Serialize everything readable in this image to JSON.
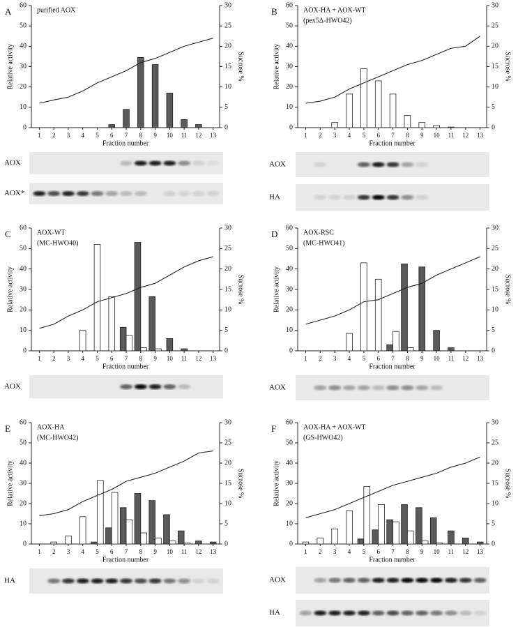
{
  "chart_data": [
    {
      "type": "bar",
      "panel": "A",
      "title": "purified AOX",
      "categories": [
        1,
        2,
        3,
        4,
        5,
        6,
        7,
        8,
        9,
        10,
        11,
        12,
        13
      ],
      "series": [
        {
          "color": "#5a5a5a",
          "values": [
            null,
            null,
            null,
            null,
            null,
            1.5,
            9,
            34.5,
            31,
            17,
            4,
            1.5,
            null
          ]
        },
        {
          "color": "#222222",
          "axis": "y2",
          "values": [
            6,
            6.8,
            7.5,
            9,
            11,
            12.5,
            14,
            16,
            17,
            18.5,
            20,
            21,
            22
          ]
        }
      ],
      "x_label": "Fraction number",
      "y_label": "Relative activity",
      "y2_label": "Sucrose %",
      "ylim": [
        0,
        60
      ],
      "yticks": [
        0,
        10,
        20,
        30,
        40,
        50,
        60
      ],
      "y2lim": [
        0,
        30
      ],
      "y2ticks": [
        0,
        5,
        10,
        15,
        20,
        25,
        30
      ],
      "blots": [
        "AOX",
        "AOX*"
      ]
    },
    {
      "type": "bar",
      "panel": "B",
      "title": "AOX-HA + AOX-WT",
      "subtitle": "(pex5Δ-HWO42)",
      "categories": [
        1,
        2,
        3,
        4,
        5,
        6,
        7,
        8,
        9,
        10,
        11,
        12,
        13
      ],
      "series": [
        {
          "color": "#ffffff",
          "values": [
            null,
            null,
            2.5,
            16.5,
            29,
            23,
            16.5,
            6,
            2.5,
            1,
            0.3,
            null,
            null
          ]
        },
        {
          "color": "#222222",
          "axis": "y2",
          "values": [
            6,
            6.5,
            7.5,
            9.5,
            11,
            12.5,
            14,
            15.5,
            16.5,
            18,
            19.5,
            20,
            22.5
          ]
        }
      ],
      "x_label": "Fraction number",
      "y_label": "Relative activity",
      "y2_label": "Sucrose %",
      "ylim": [
        0,
        60
      ],
      "yticks": [
        0,
        10,
        20,
        30,
        40,
        50,
        60
      ],
      "y2lim": [
        0,
        30
      ],
      "y2ticks": [
        0,
        5,
        10,
        15,
        20,
        25,
        30
      ],
      "blots": [
        "AOX",
        "HA"
      ]
    },
    {
      "type": "bar",
      "panel": "C",
      "title": "AOX-WT",
      "subtitle": "(MC-HWO40)",
      "categories": [
        1,
        2,
        3,
        4,
        5,
        6,
        7,
        8,
        9,
        10,
        11,
        12,
        13
      ],
      "series": [
        {
          "color": "#5a5a5a",
          "values": [
            null,
            null,
            null,
            null,
            null,
            null,
            11.5,
            53,
            26.5,
            6,
            1,
            null,
            null
          ]
        },
        {
          "color": "#ffffff",
          "values": [
            null,
            null,
            null,
            10,
            52,
            26.5,
            7.5,
            1.5,
            1,
            null,
            null,
            null,
            null
          ]
        },
        {
          "color": "#222222",
          "axis": "y2",
          "values": [
            5.5,
            6.5,
            8.5,
            10,
            12,
            13,
            14,
            15.5,
            16.5,
            18.5,
            20.5,
            22,
            23
          ]
        }
      ],
      "x_label": "Fraction number",
      "y_label": "Relative activity",
      "y2_label": "Sucrose %",
      "ylim": [
        0,
        60
      ],
      "yticks": [
        0,
        10,
        20,
        30,
        40,
        50,
        60
      ],
      "y2lim": [
        0,
        30
      ],
      "y2ticks": [
        0,
        5,
        10,
        15,
        20,
        25,
        30
      ],
      "blots": [
        "AOX"
      ]
    },
    {
      "type": "bar",
      "panel": "D",
      "title": "AOX-RSC",
      "subtitle": "(MC-HWO41)",
      "categories": [
        1,
        2,
        3,
        4,
        5,
        6,
        7,
        8,
        9,
        10,
        11,
        12,
        13
      ],
      "series": [
        {
          "color": "#5a5a5a",
          "values": [
            null,
            null,
            null,
            null,
            null,
            null,
            3,
            42.5,
            41,
            10,
            1.5,
            null,
            null
          ]
        },
        {
          "color": "#ffffff",
          "values": [
            null,
            null,
            null,
            8.5,
            43,
            35,
            9.5,
            1.5,
            null,
            null,
            null,
            null,
            null
          ]
        },
        {
          "color": "#222222",
          "axis": "y2",
          "values": [
            6.5,
            7.5,
            8.5,
            10,
            12,
            12.5,
            14,
            15.5,
            16.5,
            18.5,
            20,
            21.5,
            23
          ]
        }
      ],
      "x_label": "Fraction number",
      "y_label": "Relative activity",
      "y2_label": "Sucrose %",
      "ylim": [
        0,
        60
      ],
      "yticks": [
        0,
        10,
        20,
        30,
        40,
        50,
        60
      ],
      "y2lim": [
        0,
        30
      ],
      "y2ticks": [
        0,
        5,
        10,
        15,
        20,
        25,
        30
      ],
      "blots": [
        "AOX"
      ]
    },
    {
      "type": "bar",
      "panel": "E",
      "title": "AOX-HA",
      "subtitle": "(MC-HWO42)",
      "categories": [
        1,
        2,
        3,
        4,
        5,
        6,
        7,
        8,
        9,
        10,
        11,
        12,
        13
      ],
      "series": [
        {
          "color": "#5a5a5a",
          "values": [
            null,
            null,
            null,
            null,
            1,
            8,
            18,
            25,
            21.5,
            14.5,
            6.5,
            1.5,
            1
          ]
        },
        {
          "color": "#ffffff",
          "values": [
            null,
            1,
            4,
            13.5,
            31.5,
            25.5,
            12,
            5.5,
            3,
            1.5,
            0.5,
            null,
            null
          ]
        },
        {
          "color": "#222222",
          "axis": "y2",
          "values": [
            7,
            7.5,
            8.5,
            10.5,
            12,
            13.5,
            15.5,
            16.5,
            17.5,
            19,
            20.5,
            22.5,
            23
          ]
        }
      ],
      "x_label": "Fraction number",
      "y_label": "Relative activity",
      "y2_label": "Sucrose %",
      "ylim": [
        0,
        60
      ],
      "yticks": [
        0,
        10,
        20,
        30,
        40,
        50,
        60
      ],
      "y2lim": [
        0,
        30
      ],
      "y2ticks": [
        0,
        5,
        10,
        15,
        20,
        25,
        30
      ],
      "blots": [
        "HA"
      ]
    },
    {
      "type": "bar",
      "panel": "F",
      "title": "AOX-HA + AOX-WT",
      "subtitle": "(GS-HWO42)",
      "categories": [
        1,
        2,
        3,
        4,
        5,
        6,
        7,
        8,
        9,
        10,
        11,
        12,
        13
      ],
      "series": [
        {
          "color": "#5a5a5a",
          "values": [
            null,
            null,
            null,
            null,
            2.5,
            7,
            12,
            19.5,
            18,
            13,
            6.5,
            3,
            1
          ]
        },
        {
          "color": "#ffffff",
          "values": [
            1,
            3,
            7.5,
            16.5,
            28.5,
            19.5,
            11,
            6.5,
            1.5,
            0.5,
            null,
            null,
            null
          ]
        },
        {
          "color": "#222222",
          "axis": "y2",
          "values": [
            6.5,
            7.5,
            8.5,
            10,
            11.5,
            13,
            14.5,
            15.5,
            16.5,
            17.5,
            19,
            20,
            21.5
          ]
        }
      ],
      "x_label": "Fraction number",
      "y_label": "Relative activity",
      "y2_label": "Sucrose %",
      "ylim": [
        0,
        60
      ],
      "yticks": [
        0,
        10,
        20,
        30,
        40,
        50,
        60
      ],
      "y2lim": [
        0,
        30
      ],
      "y2ticks": [
        0,
        5,
        10,
        15,
        20,
        25,
        30
      ],
      "blots": [
        "AOX",
        "HA"
      ]
    }
  ]
}
